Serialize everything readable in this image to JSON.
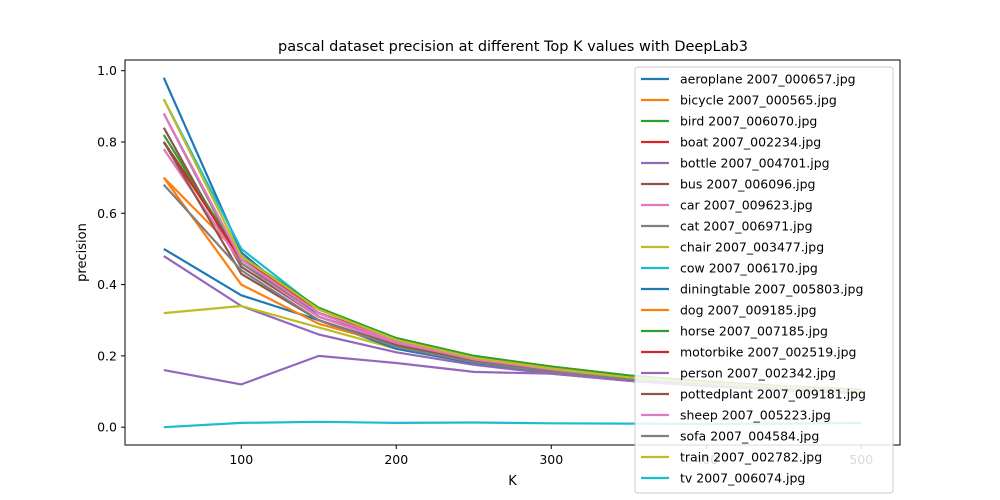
{
  "chart_data": {
    "type": "line",
    "title": "pascal  dataset precision at different Top K values with DeepLab3",
    "xlabel": "K",
    "ylabel": "precision",
    "xlim": [
      25,
      525
    ],
    "ylim": [
      -0.05,
      1.03
    ],
    "x": [
      50,
      100,
      150,
      200,
      250,
      300,
      350,
      400,
      450,
      500
    ],
    "xticks": [
      100,
      200,
      300,
      400,
      500
    ],
    "yticks": [
      0.0,
      0.2,
      0.4,
      0.6,
      0.8,
      1.0
    ],
    "xtick_labels": [
      "100",
      "200",
      "300",
      "400",
      "500"
    ],
    "ytick_labels": [
      "0.0",
      "0.2",
      "0.4",
      "0.6",
      "0.8",
      "1.0"
    ],
    "grid": false,
    "legend_position": "top-right",
    "series": [
      {
        "name": "aeroplane 2007_000657.jpg",
        "color": "#1f77b4",
        "values": [
          0.98,
          0.49,
          0.31,
          0.235,
          0.19,
          0.16,
          0.135,
          0.12,
          0.11,
          0.1
        ]
      },
      {
        "name": "bicycle 2007_000565.jpg",
        "color": "#ff7f0e",
        "values": [
          0.7,
          0.48,
          0.32,
          0.24,
          0.195,
          0.165,
          0.14,
          0.125,
          0.112,
          0.102
        ]
      },
      {
        "name": "bird 2007_006070.jpg",
        "color": "#2ca02c",
        "values": [
          0.82,
          0.47,
          0.33,
          0.25,
          0.2,
          0.17,
          0.145,
          0.128,
          0.115,
          0.105
        ]
      },
      {
        "name": "boat 2007_002234.jpg",
        "color": "#d62728",
        "values": [
          0.8,
          0.48,
          0.32,
          0.245,
          0.195,
          0.165,
          0.14,
          0.124,
          0.112,
          0.102
        ]
      },
      {
        "name": "bottle 2007_004701.jpg",
        "color": "#9467bd",
        "values": [
          0.48,
          0.34,
          0.26,
          0.21,
          0.175,
          0.15,
          0.13,
          0.115,
          0.104,
          0.095
        ]
      },
      {
        "name": "bus 2007_006096.jpg",
        "color": "#8c564b",
        "values": [
          0.84,
          0.45,
          0.31,
          0.24,
          0.19,
          0.16,
          0.14,
          0.123,
          0.11,
          0.1
        ]
      },
      {
        "name": "car 2007_009623.jpg",
        "color": "#e377c2",
        "values": [
          0.78,
          0.46,
          0.31,
          0.235,
          0.19,
          0.16,
          0.138,
          0.122,
          0.11,
          0.1
        ]
      },
      {
        "name": "cat 2007_006971.jpg",
        "color": "#7f7f7f",
        "values": [
          0.88,
          0.46,
          0.32,
          0.24,
          0.19,
          0.16,
          0.138,
          0.12,
          0.108,
          0.098
        ]
      },
      {
        "name": "chair 2007_003477.jpg",
        "color": "#bcbd22",
        "values": [
          0.32,
          0.34,
          0.28,
          0.22,
          0.18,
          0.155,
          0.133,
          0.118,
          0.106,
          0.097
        ]
      },
      {
        "name": "cow 2007_006170.jpg",
        "color": "#17becf",
        "values": [
          0.92,
          0.5,
          0.33,
          0.245,
          0.195,
          0.165,
          0.14,
          0.124,
          0.112,
          0.102
        ]
      },
      {
        "name": "diningtable 2007_005803.jpg",
        "color": "#1f77b4",
        "values": [
          0.5,
          0.37,
          0.3,
          0.22,
          0.18,
          0.155,
          0.133,
          0.118,
          0.106,
          0.097
        ]
      },
      {
        "name": "dog 2007_009185.jpg",
        "color": "#ff7f0e",
        "values": [
          0.7,
          0.4,
          0.29,
          0.23,
          0.185,
          0.158,
          0.136,
          0.12,
          0.108,
          0.098
        ]
      },
      {
        "name": "horse 2007_007185.jpg",
        "color": "#2ca02c",
        "values": [
          0.8,
          0.48,
          0.335,
          0.25,
          0.2,
          0.17,
          0.145,
          0.128,
          0.115,
          0.105
        ]
      },
      {
        "name": "motorbike 2007_002519.jpg",
        "color": "#d62728",
        "values": [
          0.8,
          0.47,
          0.32,
          0.245,
          0.195,
          0.165,
          0.14,
          0.124,
          0.112,
          0.102
        ]
      },
      {
        "name": "person 2007_002342.jpg",
        "color": "#9467bd",
        "values": [
          0.16,
          0.12,
          0.2,
          0.18,
          0.155,
          0.15,
          0.13,
          0.115,
          0.104,
          0.095
        ]
      },
      {
        "name": "pottedplant 2007_009181.jpg",
        "color": "#8c564b",
        "values": [
          0.8,
          0.43,
          0.3,
          0.23,
          0.185,
          0.158,
          0.136,
          0.12,
          0.108,
          0.098
        ]
      },
      {
        "name": "sheep 2007_005223.jpg",
        "color": "#e377c2",
        "values": [
          0.88,
          0.47,
          0.32,
          0.24,
          0.19,
          0.162,
          0.138,
          0.122,
          0.11,
          0.1
        ]
      },
      {
        "name": "sofa 2007_004584.jpg",
        "color": "#7f7f7f",
        "values": [
          0.68,
          0.44,
          0.3,
          0.225,
          0.182,
          0.155,
          0.134,
          0.118,
          0.106,
          0.097
        ]
      },
      {
        "name": "train 2007_002782.jpg",
        "color": "#bcbd22",
        "values": [
          0.92,
          0.48,
          0.33,
          0.245,
          0.195,
          0.165,
          0.14,
          0.124,
          0.112,
          0.102
        ]
      },
      {
        "name": "tv 2007_006074.jpg",
        "color": "#17becf",
        "values": [
          0.0,
          0.012,
          0.015,
          0.012,
          0.013,
          0.011,
          0.01,
          0.009,
          0.01,
          0.012
        ]
      }
    ]
  }
}
